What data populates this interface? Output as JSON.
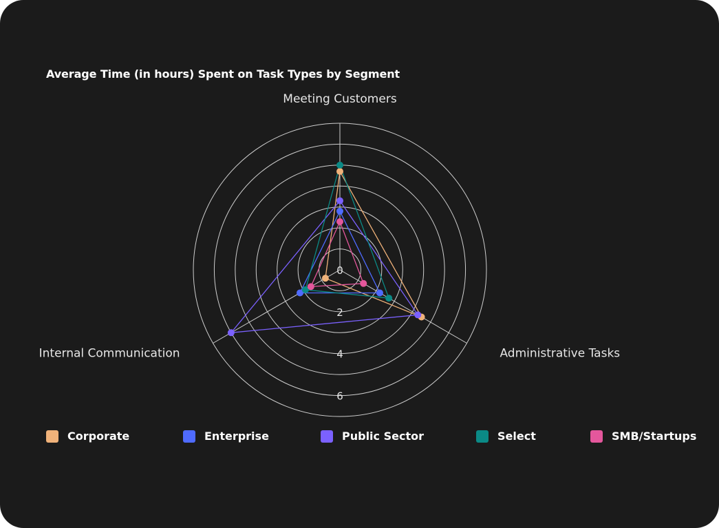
{
  "chart_data": {
    "type": "radar",
    "title": "Average Time (in hours) Spent on Task Types by Segment",
    "axes": [
      "Meeting Customers",
      "Administrative Tasks",
      "Internal Communication"
    ],
    "rlim": [
      0,
      7
    ],
    "rticks": [
      0,
      2,
      4,
      6
    ],
    "grid": true,
    "legend_position": "bottom",
    "series": [
      {
        "name": "Corporate",
        "color": "#f0b27a",
        "values": [
          4.7,
          4.5,
          0.8
        ]
      },
      {
        "name": "Enterprise",
        "color": "#4f6bff",
        "values": [
          2.8,
          2.2,
          2.2
        ]
      },
      {
        "name": "Public Sector",
        "color": "#7b61ff",
        "values": [
          3.3,
          4.3,
          6.0
        ]
      },
      {
        "name": "Select",
        "color": "#0b8a86",
        "values": [
          5.0,
          2.7,
          1.9
        ]
      },
      {
        "name": "SMB/Startups",
        "color": "#e4579c",
        "values": [
          2.3,
          1.3,
          1.6
        ]
      }
    ]
  }
}
